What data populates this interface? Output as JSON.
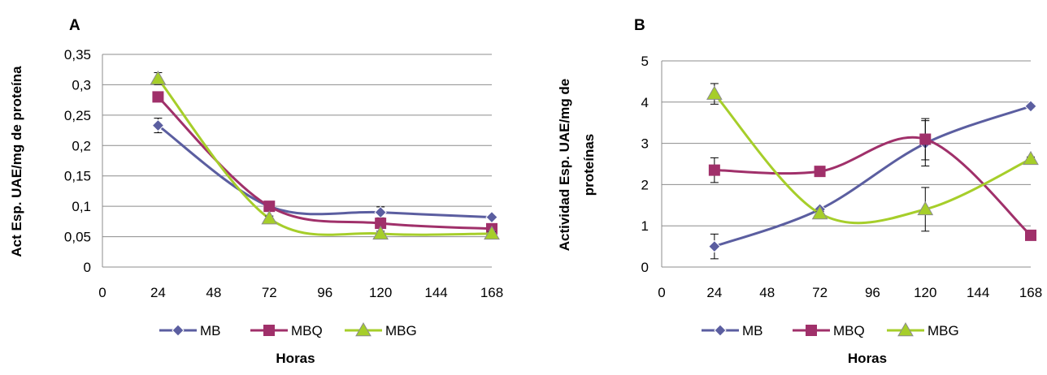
{
  "chart_data": [
    {
      "panel": "A",
      "type": "line",
      "xlabel": "Horas",
      "ylabel": "Act Esp. UAE/mg de proteína",
      "x": [
        24,
        72,
        120,
        168
      ],
      "xticks": [
        "0",
        "24",
        "48",
        "72",
        "96",
        "120",
        "144",
        "168"
      ],
      "xlim": [
        0,
        168
      ],
      "yticks": [
        "0",
        "0,05",
        "0,1",
        "0,15",
        "0,2",
        "0,25",
        "0,3",
        "0,35"
      ],
      "ylim": [
        0,
        0.35
      ],
      "grid": "horizontal",
      "legend": "bottom",
      "series": [
        {
          "name": "MB",
          "values": [
            0.233,
            0.1,
            0.09,
            0.082
          ],
          "errors": [
            0.012,
            0.004,
            0.009,
            0.003
          ]
        },
        {
          "name": "MBQ",
          "values": [
            0.28,
            0.1,
            0.072,
            0.063
          ],
          "errors": [
            0.004,
            0.004,
            0.004,
            0.003
          ]
        },
        {
          "name": "MBG",
          "values": [
            0.31,
            0.08,
            0.055,
            0.055
          ],
          "errors": [
            0.01,
            0.004,
            0.004,
            0.003
          ]
        }
      ]
    },
    {
      "panel": "B",
      "type": "line",
      "xlabel": "Horas",
      "ylabel": "Actividad Esp. UAE/mg de proteínas",
      "x": [
        24,
        72,
        120,
        168
      ],
      "xticks": [
        "0",
        "24",
        "48",
        "72",
        "96",
        "120",
        "144",
        "168"
      ],
      "xlim": [
        0,
        168
      ],
      "yticks": [
        "0",
        "1",
        "2",
        "3",
        "4",
        "5"
      ],
      "ylim": [
        0,
        5
      ],
      "grid": "horizontal",
      "legend": "bottom",
      "series": [
        {
          "name": "MB",
          "values": [
            0.5,
            1.4,
            3.0,
            3.9
          ],
          "errors": [
            0.3,
            0.05,
            0.55,
            0.05
          ]
        },
        {
          "name": "MBQ",
          "values": [
            2.35,
            2.32,
            3.1,
            0.77
          ],
          "errors": [
            0.3,
            0.05,
            0.5,
            0.05
          ]
        },
        {
          "name": "MBG",
          "values": [
            4.2,
            1.3,
            1.4,
            2.62
          ],
          "errors": [
            0.25,
            0.05,
            0.53,
            0.05
          ]
        }
      ]
    }
  ],
  "colors": {
    "MB": "#5B5EA0",
    "MBQ": "#A0306A",
    "MBG": "#A6CE2A"
  }
}
